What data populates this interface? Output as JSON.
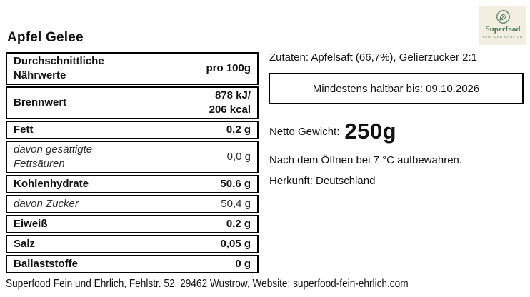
{
  "title": "Apfel Gelee",
  "logo": {
    "brand": "Superfood",
    "tagline": "FEIN UND EHRLICH",
    "icon": "leaf-icon",
    "colors": {
      "background": "#f2eee0",
      "green": "#4e7b5c"
    }
  },
  "nutrition_table": {
    "header_label": "Durchschnittliche\nNährwerte",
    "header_value": "pro 100g",
    "rows": [
      {
        "label": "Brennwert",
        "value": "878 kJ/\n206 kcal",
        "style": "bold"
      },
      {
        "label": "Fett",
        "value": "0,2 g",
        "style": "bold"
      },
      {
        "label": "davon gesättigte\nFettsäuren",
        "value": "0,0 g",
        "style": "italic"
      },
      {
        "label": "Kohlenhydrate",
        "value": "50,6 g",
        "style": "bold"
      },
      {
        "label": "davon Zucker",
        "value": "50,4 g",
        "style": "italic"
      },
      {
        "label": "Eiweiß",
        "value": "0,2 g",
        "style": "bold"
      },
      {
        "label": "Salz",
        "value": "0,05 g",
        "style": "bold"
      },
      {
        "label": "Ballaststoffe",
        "value": "0 g",
        "style": "bold"
      }
    ]
  },
  "details": {
    "ingredients": "Zutaten: Apfelsaft (66,7%), Gelierzucker 2:1",
    "best_before": "Mindestens haltbar bis: 09.10.2026",
    "net_weight_label": "Netto Gewicht:",
    "net_weight_value": "250g",
    "storage": "Nach dem Öffnen bei 7 °C aufbewahren.",
    "origin": "Herkunft: Deutschland"
  },
  "footer": "Superfood Fein und Ehrlich, Fehlstr. 52, 29462 Wustrow, Website: superfood-fein-ehrlich.com"
}
